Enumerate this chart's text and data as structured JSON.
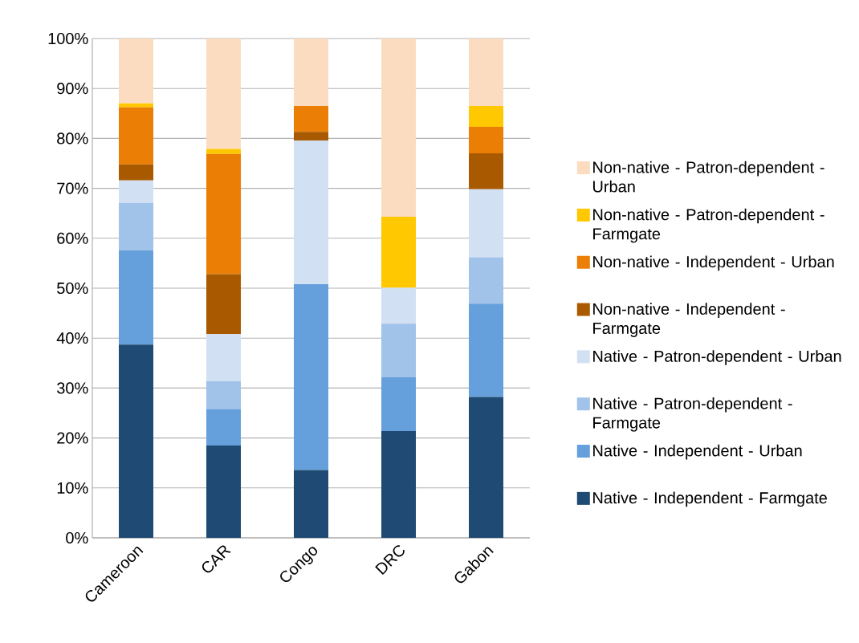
{
  "chart_data": {
    "type": "bar",
    "stacked": true,
    "categories": [
      "Cameroon",
      "CAR",
      "Congo",
      "DRC",
      "Gabon"
    ],
    "series": [
      {
        "name": "Native - Independent - Farmgate",
        "color": "#1f4a73",
        "values": [
          38.7,
          18.5,
          13.6,
          21.4,
          28.2
        ]
      },
      {
        "name": "Native - Independent - Urban",
        "color": "#65a0dc",
        "values": [
          18.9,
          7.3,
          37.2,
          10.8,
          18.7
        ]
      },
      {
        "name": "Native - Patron-dependent - Farmgate",
        "color": "#a1c2e9",
        "values": [
          9.5,
          5.6,
          0,
          10.7,
          9.3
        ]
      },
      {
        "name": "Native - Patron-dependent - Urban",
        "color": "#d1e1f3",
        "values": [
          4.5,
          9.4,
          28.8,
          7.2,
          13.6
        ]
      },
      {
        "name": "Non-native - Independent - Farmgate",
        "color": "#a95a00",
        "values": [
          3.2,
          12.0,
          1.7,
          0,
          7.2
        ]
      },
      {
        "name": "Non-native - Independent - Urban",
        "color": "#eb7e05",
        "values": [
          11.4,
          24.1,
          5.2,
          0,
          5.3
        ]
      },
      {
        "name": "Non-native - Patron-dependent - Farmgate",
        "color": "#ffc800",
        "values": [
          0.8,
          1.0,
          0,
          14.2,
          4.2
        ]
      },
      {
        "name": "Non-native - Patron-dependent - Urban",
        "color": "#fcdcc0",
        "values": [
          13.0,
          22.1,
          13.5,
          35.7,
          13.5
        ]
      }
    ],
    "ylim": [
      0,
      100
    ],
    "yticks": [
      {
        "value": 0,
        "label": "0%"
      },
      {
        "value": 10,
        "label": "10%"
      },
      {
        "value": 20,
        "label": "20%"
      },
      {
        "value": 30,
        "label": "30%"
      },
      {
        "value": 40,
        "label": "40%"
      },
      {
        "value": 50,
        "label": "50%"
      },
      {
        "value": 60,
        "label": "60%"
      },
      {
        "value": 70,
        "label": "70%"
      },
      {
        "value": 80,
        "label": "80%"
      },
      {
        "value": 90,
        "label": "90%"
      },
      {
        "value": 100,
        "label": "100%"
      }
    ],
    "grid": "y",
    "legend": "right"
  }
}
